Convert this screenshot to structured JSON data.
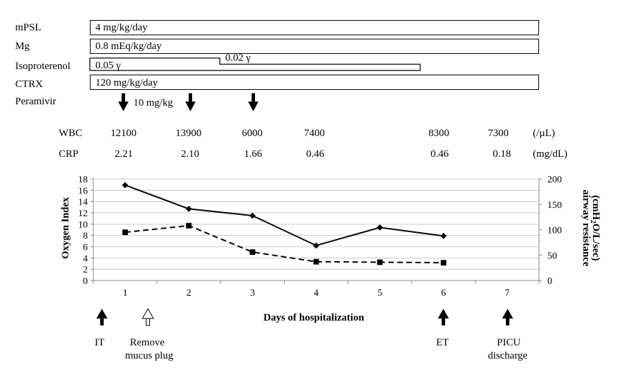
{
  "treatments": {
    "mPSL": {
      "name": "mPSL",
      "dose": "4 mg/kg/day"
    },
    "Mg": {
      "name": "Mg",
      "dose": "0.8 mEq/kg/day"
    },
    "isoproterenol": {
      "name": "Isoproterenol",
      "dose1": "0.05 γ",
      "dose2": "0.02 γ"
    },
    "CTRX": {
      "name": "CTRX",
      "dose": "120 mg/kg/day"
    },
    "peramivir": {
      "name": "Peramivir",
      "dose": "10 mg/kg"
    }
  },
  "labs": {
    "wbc": {
      "label": "WBC",
      "unit": "(/µL)",
      "values": [
        "12100",
        "13900",
        "6000",
        "7400",
        "8300",
        "7300"
      ]
    },
    "crp": {
      "label": "CRP",
      "unit": "(mg/dL)",
      "values": [
        "2.21",
        "2.10",
        "1.66",
        "0.46",
        "0.46",
        "0.18"
      ]
    }
  },
  "events": {
    "it": "IT",
    "remove_line1": "Remove",
    "remove_line2": "mucus plug",
    "et": "ET",
    "picu_line1": "PICU",
    "picu_line2": "discharge"
  },
  "chart_data": {
    "type": "line",
    "xlabel": "Days of hospitalization",
    "ylabel_left": "Oxygen Index",
    "ylabel_right": "airway resistance (cmH2O/L/sec)",
    "categories": [
      "1",
      "2",
      "3",
      "4",
      "5",
      "6",
      "7"
    ],
    "ylim_left": [
      0,
      18
    ],
    "yticks_left": [
      0,
      2,
      4,
      6,
      8,
      10,
      12,
      14,
      16,
      18
    ],
    "ylim_right": [
      0,
      200
    ],
    "yticks_right": [
      0,
      50,
      100,
      150,
      200
    ],
    "grid": true,
    "series": [
      {
        "axis": "left",
        "style": "solid",
        "marker": "diamond",
        "x": [
          1,
          2,
          3,
          4,
          5,
          6
        ],
        "values": [
          16.9,
          12.7,
          11.5,
          6.2,
          9.4,
          7.9
        ]
      },
      {
        "axis": "right",
        "style": "dashed",
        "marker": "square",
        "x": [
          1,
          2,
          3,
          4,
          5,
          6
        ],
        "values": [
          95,
          108,
          56,
          37,
          36,
          35
        ]
      }
    ]
  }
}
